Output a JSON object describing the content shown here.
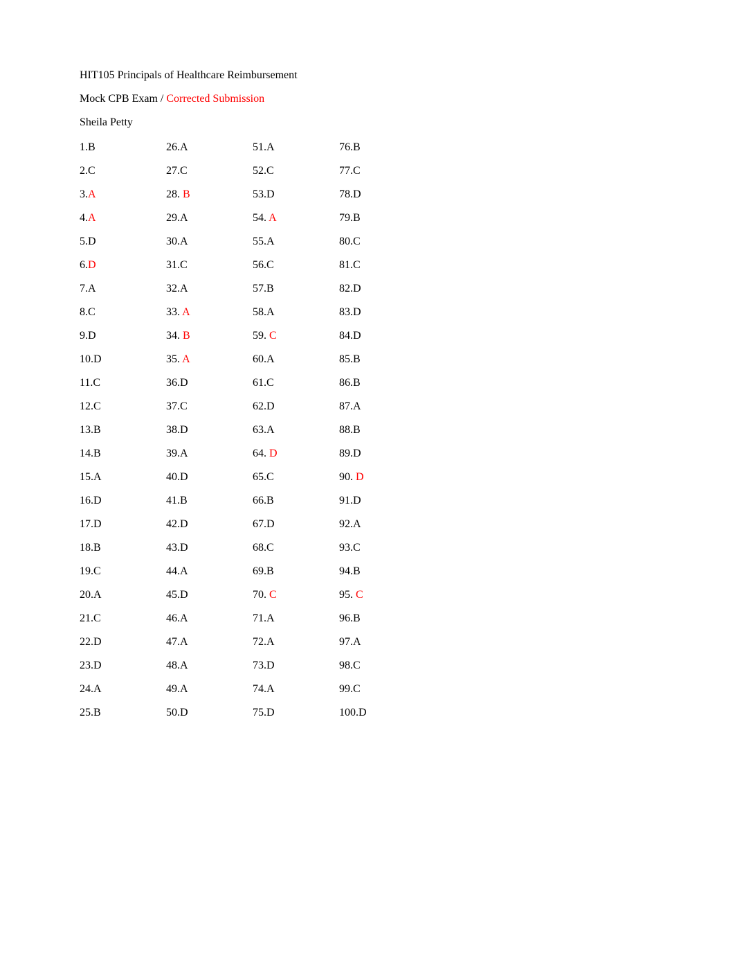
{
  "header": {
    "courseTitle": "HIT105 Principals of Healthcare Reimbursement",
    "examTitlePrefix": "Mock CPB Exam /   ",
    "examTitleCorrected": "Corrected Submission",
    "studentName": "Sheila Petty"
  },
  "colors": {
    "text": "#000000",
    "corrected": "#ff0000",
    "background": "#ffffff"
  },
  "answers": {
    "col1": [
      {
        "num": "1.",
        "numColor": "#000000",
        "ans": "B",
        "ansColor": "#000000"
      },
      {
        "num": "2.",
        "numColor": "#000000",
        "ans": "C",
        "ansColor": "#000000"
      },
      {
        "num": "3.",
        "numColor": "#000000",
        "ans": "A",
        "ansColor": "#ff0000"
      },
      {
        "num": "4.",
        "numColor": "#000000",
        "ans": "A",
        "ansColor": "#ff0000"
      },
      {
        "num": "5.",
        "numColor": "#000000",
        "ans": "D",
        "ansColor": "#000000"
      },
      {
        "num": "6.",
        "numColor": "#000000",
        "ans": "D",
        "ansColor": "#ff0000"
      },
      {
        "num": "7.",
        "numColor": "#000000",
        "ans": "A",
        "ansColor": "#000000"
      },
      {
        "num": "8.",
        "numColor": "#000000",
        "ans": "C",
        "ansColor": "#000000"
      },
      {
        "num": "9.",
        "numColor": "#000000",
        "ans": "D",
        "ansColor": "#000000"
      },
      {
        "num": "10.",
        "numColor": "#000000",
        "ans": "D",
        "ansColor": "#000000"
      },
      {
        "num": "11.",
        "numColor": "#000000",
        "ans": "C",
        "ansColor": "#000000"
      },
      {
        "num": "12.",
        "numColor": "#000000",
        "ans": "C",
        "ansColor": "#000000"
      },
      {
        "num": "13.",
        "numColor": "#000000",
        "ans": "B",
        "ansColor": "#000000"
      },
      {
        "num": "14.",
        "numColor": "#000000",
        "ans": "B",
        "ansColor": "#000000"
      },
      {
        "num": "15.",
        "numColor": "#000000",
        "ans": "A",
        "ansColor": "#000000"
      },
      {
        "num": "16.",
        "numColor": "#000000",
        "ans": "D",
        "ansColor": "#000000"
      },
      {
        "num": "17.",
        "numColor": "#000000",
        "ans": "D",
        "ansColor": "#000000"
      },
      {
        "num": "18.",
        "numColor": "#000000",
        "ans": "B",
        "ansColor": "#000000"
      },
      {
        "num": "19.",
        "numColor": "#000000",
        "ans": "C",
        "ansColor": "#000000"
      },
      {
        "num": "20.",
        "numColor": "#000000",
        "ans": "A",
        "ansColor": "#000000"
      },
      {
        "num": "21.",
        "numColor": "#000000",
        "ans": "C",
        "ansColor": "#000000"
      },
      {
        "num": "22.",
        "numColor": "#000000",
        "ans": "D",
        "ansColor": "#000000"
      },
      {
        "num": "23.",
        "numColor": "#000000",
        "ans": "D",
        "ansColor": "#000000"
      },
      {
        "num": "24.",
        "numColor": "#000000",
        "ans": "A",
        "ansColor": "#000000"
      },
      {
        "num": "25.",
        "numColor": "#000000",
        "ans": "B",
        "ansColor": "#000000"
      }
    ],
    "col2": [
      {
        "num": "26.",
        "numColor": "#000000",
        "ans": "A",
        "ansColor": "#000000"
      },
      {
        "num": "27.",
        "numColor": "#000000",
        "ans": "C",
        "ansColor": "#000000"
      },
      {
        "num": "28.",
        "numColor": "#000000",
        "ans": " B",
        "ansColor": "#ff0000"
      },
      {
        "num": "29.",
        "numColor": "#000000",
        "ans": "A",
        "ansColor": "#000000"
      },
      {
        "num": "30.",
        "numColor": "#000000",
        "ans": "A",
        "ansColor": "#000000"
      },
      {
        "num": "31.",
        "numColor": "#000000",
        "ans": "C",
        "ansColor": "#000000"
      },
      {
        "num": "32.",
        "numColor": "#000000",
        "ans": "A",
        "ansColor": "#000000"
      },
      {
        "num": "33.",
        "numColor": "#000000",
        "ans": " A",
        "ansColor": "#ff0000"
      },
      {
        "num": "34.",
        "numColor": "#000000",
        "ans": " B",
        "ansColor": "#ff0000"
      },
      {
        "num": "35.",
        "numColor": "#000000",
        "ans": " A",
        "ansColor": "#ff0000"
      },
      {
        "num": "36.",
        "numColor": "#000000",
        "ans": "D",
        "ansColor": "#000000"
      },
      {
        "num": "37.",
        "numColor": "#000000",
        "ans": "C",
        "ansColor": "#000000"
      },
      {
        "num": "38.",
        "numColor": "#000000",
        "ans": "D",
        "ansColor": "#000000"
      },
      {
        "num": "39.",
        "numColor": "#000000",
        "ans": "A",
        "ansColor": "#000000"
      },
      {
        "num": "40.",
        "numColor": "#000000",
        "ans": "D",
        "ansColor": "#000000"
      },
      {
        "num": "41.",
        "numColor": "#000000",
        "ans": "B",
        "ansColor": "#000000"
      },
      {
        "num": "42.",
        "numColor": "#000000",
        "ans": "D",
        "ansColor": "#000000"
      },
      {
        "num": "43.",
        "numColor": "#000000",
        "ans": "D",
        "ansColor": "#000000"
      },
      {
        "num": "44.",
        "numColor": "#000000",
        "ans": "A",
        "ansColor": "#000000"
      },
      {
        "num": "45.",
        "numColor": "#000000",
        "ans": "D",
        "ansColor": "#000000"
      },
      {
        "num": "46.",
        "numColor": "#000000",
        "ans": "A",
        "ansColor": "#000000"
      },
      {
        "num": "47.",
        "numColor": "#000000",
        "ans": "A",
        "ansColor": "#000000"
      },
      {
        "num": "48.",
        "numColor": "#000000",
        "ans": "A",
        "ansColor": "#000000"
      },
      {
        "num": "49.",
        "numColor": "#000000",
        "ans": "A",
        "ansColor": "#000000"
      },
      {
        "num": "50.",
        "numColor": "#000000",
        "ans": "D",
        "ansColor": "#000000"
      }
    ],
    "col3": [
      {
        "num": "51.",
        "numColor": "#000000",
        "ans": "A",
        "ansColor": "#000000"
      },
      {
        "num": "52.",
        "numColor": "#000000",
        "ans": "C",
        "ansColor": "#000000"
      },
      {
        "num": "53.",
        "numColor": "#000000",
        "ans": "D",
        "ansColor": "#000000"
      },
      {
        "num": "54.",
        "numColor": "#000000",
        "ans": " A",
        "ansColor": "#ff0000"
      },
      {
        "num": "55.",
        "numColor": "#000000",
        "ans": "A",
        "ansColor": "#000000"
      },
      {
        "num": "56.",
        "numColor": "#000000",
        "ans": "C",
        "ansColor": "#000000"
      },
      {
        "num": "57.",
        "numColor": "#000000",
        "ans": "B",
        "ansColor": "#000000"
      },
      {
        "num": "58.",
        "numColor": "#000000",
        "ans": "A",
        "ansColor": "#000000"
      },
      {
        "num": "59.",
        "numColor": "#000000",
        "ans": " C",
        "ansColor": "#ff0000"
      },
      {
        "num": "60.",
        "numColor": "#000000",
        "ans": "A",
        "ansColor": "#000000"
      },
      {
        "num": "61.",
        "numColor": "#000000",
        "ans": "C",
        "ansColor": "#000000"
      },
      {
        "num": "62.",
        "numColor": "#000000",
        "ans": "D",
        "ansColor": "#000000"
      },
      {
        "num": "63.",
        "numColor": "#000000",
        "ans": "A",
        "ansColor": "#000000"
      },
      {
        "num": "64.",
        "numColor": "#000000",
        "ans": " D",
        "ansColor": "#ff0000"
      },
      {
        "num": "65.",
        "numColor": "#000000",
        "ans": "C",
        "ansColor": "#000000"
      },
      {
        "num": "66.",
        "numColor": "#000000",
        "ans": "B",
        "ansColor": "#000000"
      },
      {
        "num": "67.",
        "numColor": "#000000",
        "ans": "D",
        "ansColor": "#000000"
      },
      {
        "num": "68.",
        "numColor": "#000000",
        "ans": "C",
        "ansColor": "#000000"
      },
      {
        "num": "69.",
        "numColor": "#000000",
        "ans": "B",
        "ansColor": "#000000"
      },
      {
        "num": "70.",
        "numColor": "#000000",
        "ans": " C",
        "ansColor": "#ff0000"
      },
      {
        "num": "71.",
        "numColor": "#000000",
        "ans": "A",
        "ansColor": "#000000"
      },
      {
        "num": "72.",
        "numColor": "#000000",
        "ans": "A",
        "ansColor": "#000000"
      },
      {
        "num": "73.",
        "numColor": "#000000",
        "ans": "D",
        "ansColor": "#000000"
      },
      {
        "num": "74.",
        "numColor": "#000000",
        "ans": "A",
        "ansColor": "#000000"
      },
      {
        "num": "75.",
        "numColor": "#000000",
        "ans": "D",
        "ansColor": "#000000"
      }
    ],
    "col4": [
      {
        "num": "76.",
        "numColor": "#000000",
        "ans": "B",
        "ansColor": "#000000"
      },
      {
        "num": "77.",
        "numColor": "#000000",
        "ans": "C",
        "ansColor": "#000000"
      },
      {
        "num": "78.",
        "numColor": "#000000",
        "ans": "D",
        "ansColor": "#000000"
      },
      {
        "num": "79.",
        "numColor": "#000000",
        "ans": "B",
        "ansColor": "#000000"
      },
      {
        "num": "80.",
        "numColor": "#000000",
        "ans": "C",
        "ansColor": "#000000"
      },
      {
        "num": "81.",
        "numColor": "#000000",
        "ans": "C",
        "ansColor": "#000000"
      },
      {
        "num": "82.",
        "numColor": "#000000",
        "ans": "D",
        "ansColor": "#000000"
      },
      {
        "num": "83.",
        "numColor": "#000000",
        "ans": "D",
        "ansColor": "#000000"
      },
      {
        "num": "84.",
        "numColor": "#000000",
        "ans": "D",
        "ansColor": "#000000"
      },
      {
        "num": "85.",
        "numColor": "#000000",
        "ans": "B",
        "ansColor": "#000000"
      },
      {
        "num": "86.",
        "numColor": "#000000",
        "ans": "B",
        "ansColor": "#000000"
      },
      {
        "num": "87.",
        "numColor": "#000000",
        "ans": "A",
        "ansColor": "#000000"
      },
      {
        "num": "88.",
        "numColor": "#000000",
        "ans": "B",
        "ansColor": "#000000"
      },
      {
        "num": "89.",
        "numColor": "#000000",
        "ans": "D",
        "ansColor": "#000000"
      },
      {
        "num": "90.",
        "numColor": "#000000",
        "ans": " D",
        "ansColor": "#ff0000"
      },
      {
        "num": "91.",
        "numColor": "#000000",
        "ans": "D",
        "ansColor": "#000000"
      },
      {
        "num": "92.",
        "numColor": "#000000",
        "ans": "A",
        "ansColor": "#000000"
      },
      {
        "num": "93.",
        "numColor": "#000000",
        "ans": "C",
        "ansColor": "#000000"
      },
      {
        "num": "94.",
        "numColor": "#000000",
        "ans": "B",
        "ansColor": "#000000"
      },
      {
        "num": "95.",
        "numColor": "#000000",
        "ans": " C",
        "ansColor": "#ff0000"
      },
      {
        "num": "96.",
        "numColor": "#000000",
        "ans": "B",
        "ansColor": "#000000"
      },
      {
        "num": "97.",
        "numColor": "#000000",
        "ans": "A",
        "ansColor": "#000000"
      },
      {
        "num": "98.",
        "numColor": "#000000",
        "ans": "C",
        "ansColor": "#000000"
      },
      {
        "num": "99.",
        "numColor": "#000000",
        "ans": "C",
        "ansColor": "#000000"
      },
      {
        "num": "100.",
        "numColor": "#000000",
        "ans": "D",
        "ansColor": "#000000"
      }
    ]
  }
}
